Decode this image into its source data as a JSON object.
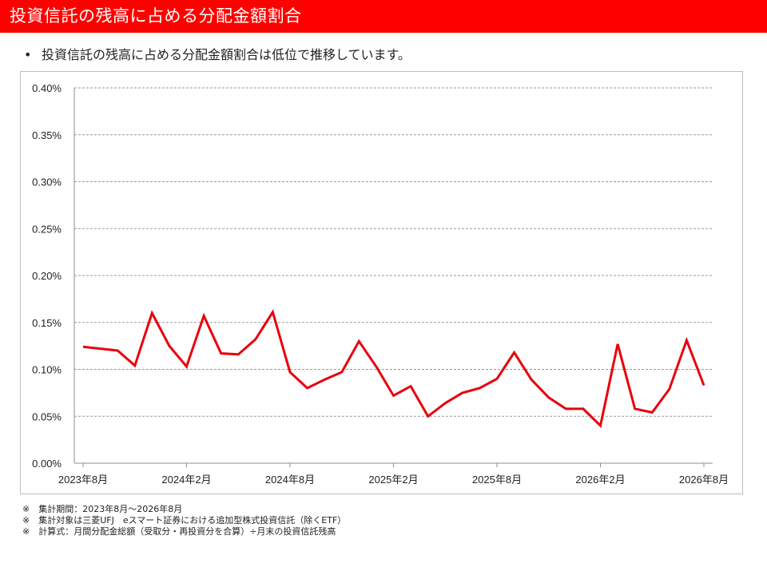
{
  "title": "投資信託の残高に占める分配金額割合",
  "bullet": {
    "mark": "•",
    "text": "投資信託の残高に占める分配金額割合は低位で推移しています。"
  },
  "notes": [
    "※　集計期間：2023年8月～2026年8月",
    "※　集計対象は三菱UFJ　eスマート証券における追加型株式投資信託（除くETF）",
    "※　計算式：月間分配金総額（受取分・再投資分を合算）÷月末の投資信託残高"
  ],
  "colors": {
    "accent": "#ff0000",
    "line": "#e8000d"
  },
  "chart_data": {
    "type": "line",
    "ylim": [
      0,
      0.4
    ],
    "yticks": [
      0,
      0.05,
      0.1,
      0.15,
      0.2,
      0.25,
      0.3,
      0.35,
      0.4
    ],
    "ytick_labels": [
      "0.00%",
      "0.05%",
      "0.10%",
      "0.15%",
      "0.20%",
      "0.25%",
      "0.30%",
      "0.35%",
      "0.40%"
    ],
    "grid": true,
    "x": [
      "2023年8月",
      "2023年9月",
      "2023年10月",
      "2023年11月",
      "2023年12月",
      "2024年1月",
      "2024年2月",
      "2024年3月",
      "2024年4月",
      "2024年5月",
      "2024年6月",
      "2024年7月",
      "2024年8月",
      "2024年9月",
      "2024年10月",
      "2024年11月",
      "2024年12月",
      "2025年1月",
      "2025年2月",
      "2025年3月",
      "2025年4月",
      "2025年5月",
      "2025年6月",
      "2025年7月",
      "2025年8月",
      "2025年9月",
      "2025年10月",
      "2025年11月",
      "2025年12月",
      "2026年1月",
      "2026年2月",
      "2026年3月",
      "2026年4月",
      "2026年5月",
      "2026年6月",
      "2026年7月",
      "2026年8月"
    ],
    "xtick_labels": [
      "2023年8月",
      "2024年2月",
      "2024年8月",
      "2025年2月",
      "2025年8月",
      "2026年2月",
      "2026年8月"
    ],
    "xtick_index": [
      0,
      6,
      12,
      18,
      24,
      30,
      36
    ],
    "series": [
      {
        "values": [
          0.124,
          0.122,
          0.12,
          0.104,
          0.16,
          0.125,
          0.103,
          0.157,
          0.117,
          0.116,
          0.132,
          0.161,
          0.097,
          0.08,
          0.089,
          0.097,
          0.13,
          0.103,
          0.072,
          0.082,
          0.05,
          0.064,
          0.075,
          0.08,
          0.09,
          0.118,
          0.089,
          0.07,
          0.058,
          0.058,
          0.04,
          0.127,
          0.058,
          0.054,
          0.079,
          0.131,
          0.083
        ]
      }
    ]
  }
}
